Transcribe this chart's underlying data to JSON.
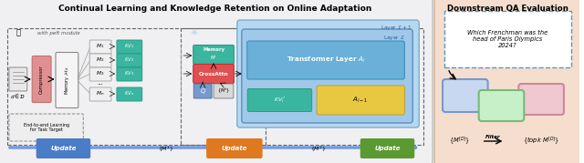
{
  "title_left": "Continual Learning and Knowledge Retention on Online Adaptation",
  "title_right": "Downstream QA Evaluation",
  "bg_color_right": "#f5dece",
  "update_colors": [
    "#4a7cc7",
    "#e07820",
    "#5a9a30"
  ],
  "teal_color": "#3ab5a0",
  "teal_dark": "#2a9a85",
  "crossattn_color": "#e05050",
  "crossattn_dark": "#c03030",
  "compressor_color": "#e09090",
  "compressor_dark": "#c07070",
  "blue_layer_outer": "#b8d8f0",
  "blue_layer_outer_edge": "#7aadd0",
  "blue_layer_inner": "#a0c8e8",
  "blue_layer_inner_edge": "#5a90c0",
  "blue_trans": "#6ab0d8",
  "blue_trans_edge": "#4090b8",
  "yellow_al": "#e8c840",
  "yellow_al_edge": "#c0a030",
  "q_box_color": "#9bb8e0",
  "mt_box_color": "#d8d8d8",
  "question_text": "Which Frenchman was the\nhead of Paris Olympics\n2024?",
  "filter_text": "Filter",
  "speech_blue": {
    "face": "#c8d8f0",
    "edge": "#7799cc"
  },
  "speech_pink": {
    "face": "#f0c8d0",
    "edge": "#cc8899"
  },
  "speech_green": {
    "face": "#c8f0c8",
    "edge": "#77bb77"
  }
}
